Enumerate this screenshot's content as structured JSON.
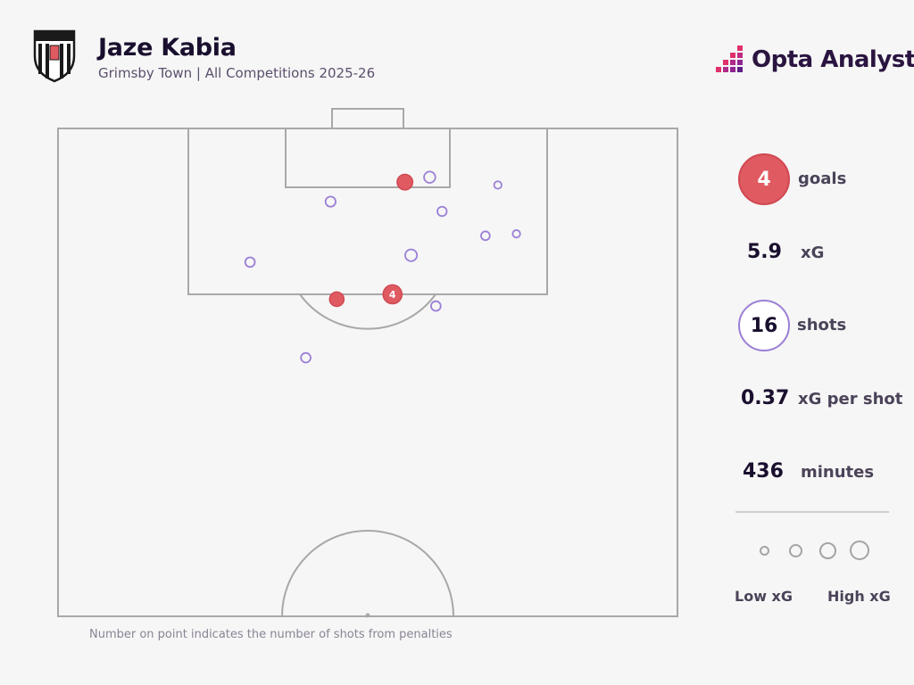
{
  "header": {
    "title": "Jaze Kabia",
    "subtitle": "Grimsby Town | All Competitions 2025-26",
    "brand": "Opta Analyst"
  },
  "colors": {
    "goal": "#e05a62",
    "miss": "#9b7fd6",
    "line": "#a8a8a8",
    "background": "#f6f6f6"
  },
  "stats": {
    "goals": {
      "value": "4",
      "label": "goals"
    },
    "xg": {
      "value": "5.9",
      "label": "xG"
    },
    "shots": {
      "value": "16",
      "label": "shots"
    },
    "xg_per_shot": {
      "value": "0.37",
      "label": "xG per shot"
    },
    "minutes": {
      "value": "436",
      "label": "minutes"
    }
  },
  "legend": {
    "low": "Low xG",
    "high": "High xG"
  },
  "footnote": "Number on point indicates the number of shots from penalties",
  "chart_data": {
    "type": "scatter",
    "title": "Jaze Kabia",
    "subtitle": "Grimsby Town | All Competitions 2025-26",
    "pitch": "half-pitch, attacking towards top goal",
    "x_range": [
      0,
      100
    ],
    "y_range": [
      50,
      100
    ],
    "shots": [
      {
        "x": 56,
        "y": 94.5,
        "xg": 0.45,
        "goal": true,
        "penalties": 0
      },
      {
        "x": 60,
        "y": 95.0,
        "xg": 0.15,
        "goal": false,
        "penalties": 0
      },
      {
        "x": 44,
        "y": 92.5,
        "xg": 0.1,
        "goal": false,
        "penalties": 0
      },
      {
        "x": 62,
        "y": 91.5,
        "xg": 0.07,
        "goal": false,
        "penalties": 0
      },
      {
        "x": 71,
        "y": 94.2,
        "xg": 0.02,
        "goal": false,
        "penalties": 0
      },
      {
        "x": 69,
        "y": 89.0,
        "xg": 0.05,
        "goal": false,
        "penalties": 0
      },
      {
        "x": 74,
        "y": 89.2,
        "xg": 0.02,
        "goal": false,
        "penalties": 0
      },
      {
        "x": 57,
        "y": 87.0,
        "xg": 0.18,
        "goal": false,
        "penalties": 0
      },
      {
        "x": 31,
        "y": 86.3,
        "xg": 0.08,
        "goal": false,
        "penalties": 0
      },
      {
        "x": 54,
        "y": 83.0,
        "xg": 0.79,
        "goal": true,
        "penalties": 4
      },
      {
        "x": 45,
        "y": 82.5,
        "xg": 0.35,
        "goal": true,
        "penalties": 0
      },
      {
        "x": 61,
        "y": 81.8,
        "xg": 0.08,
        "goal": false,
        "penalties": 0
      },
      {
        "x": 40,
        "y": 76.5,
        "xg": 0.08,
        "goal": false,
        "penalties": 0
      }
    ]
  }
}
